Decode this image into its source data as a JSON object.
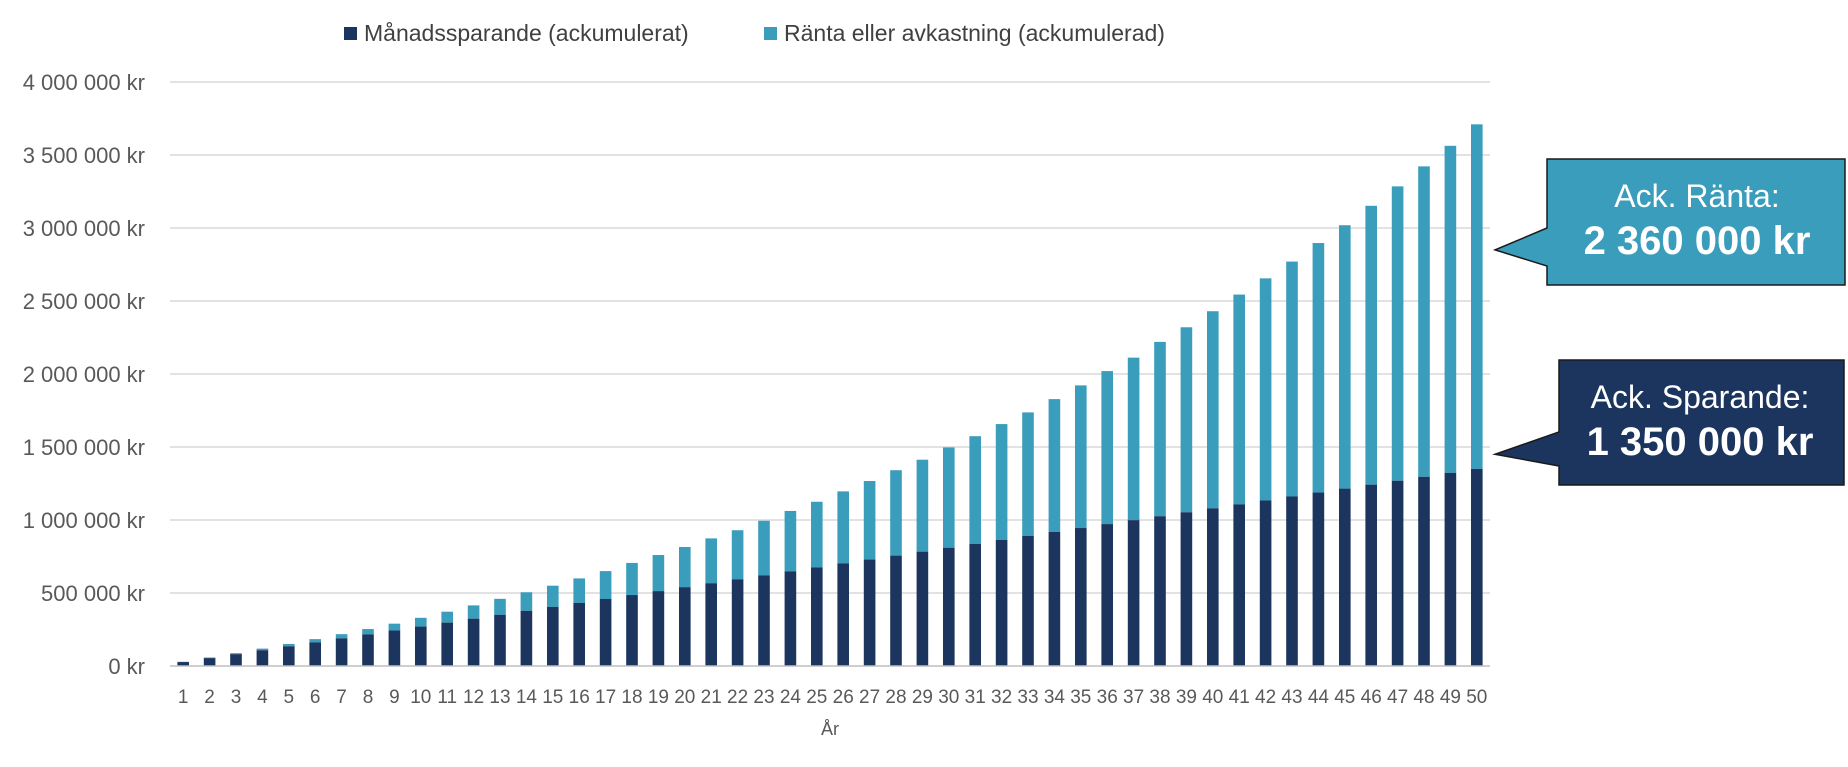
{
  "colors": {
    "series1": "#1c355e",
    "series2": "#3a9dbb",
    "grid": "#d9d9d9",
    "axis": "#bfbfbf",
    "callout_border": "#1a1a1a",
    "callout_text": "#ffffff"
  },
  "legend": {
    "series1_label": "Månadssparande (ackumulerat)",
    "series2_label": "Ränta eller avkastning (ackumulerad)"
  },
  "callouts": {
    "interest": {
      "line1": "Ack. Ränta:",
      "line2": "2 360 000 kr",
      "points_to_value": 2850000,
      "color": "#3a9dbb"
    },
    "savings": {
      "line1": "Ack. Sparande:",
      "line2": "1 350 000 kr",
      "points_to_value": 1450000,
      "color": "#1c355e"
    }
  },
  "chart_data": {
    "type": "bar",
    "stacked": true,
    "title": "",
    "xlabel": "År",
    "ylabel": "",
    "ylim": [
      0,
      4000000
    ],
    "y_ticks": [
      0,
      500000,
      1000000,
      1500000,
      2000000,
      2500000,
      3000000,
      3500000,
      4000000
    ],
    "y_tick_labels": [
      "0 kr",
      "500 000 kr",
      "1 000 000 kr",
      "1 500 000 kr",
      "2 000 000 kr",
      "2 500 000 kr",
      "3 000 000 kr",
      "3 500 000 kr",
      "4 000 000 kr"
    ],
    "grid": true,
    "legend_position": "top",
    "categories": [
      "1",
      "2",
      "3",
      "4",
      "5",
      "6",
      "7",
      "8",
      "9",
      "10",
      "11",
      "12",
      "13",
      "14",
      "15",
      "16",
      "17",
      "18",
      "19",
      "20",
      "21",
      "22",
      "23",
      "24",
      "25",
      "26",
      "27",
      "28",
      "29",
      "30",
      "31",
      "32",
      "33",
      "34",
      "35",
      "36",
      "37",
      "38",
      "39",
      "40",
      "41",
      "42",
      "43",
      "44",
      "45",
      "46",
      "47",
      "48",
      "49",
      "50"
    ],
    "series": [
      {
        "name": "Månadssparande (ackumulerat)",
        "values": [
          27000,
          54000,
          81000,
          108000,
          135000,
          162000,
          189000,
          216000,
          243000,
          270000,
          297000,
          324000,
          351000,
          378000,
          405000,
          432000,
          459000,
          486000,
          513000,
          540000,
          567000,
          594000,
          621000,
          648000,
          675000,
          702000,
          729000,
          756000,
          783000,
          810000,
          837000,
          864000,
          891000,
          918000,
          945000,
          972000,
          999000,
          1026000,
          1053000,
          1080000,
          1107000,
          1134000,
          1161000,
          1188000,
          1215000,
          1242000,
          1269000,
          1296000,
          1323000,
          1350000
        ]
      },
      {
        "name": "Ränta eller avkastning (ackumulerad)",
        "values": [
          2000,
          4000,
          7000,
          11000,
          16000,
          22000,
          29000,
          37000,
          47000,
          60000,
          75000,
          91000,
          109000,
          127000,
          145000,
          168000,
          191000,
          220000,
          247000,
          275000,
          307000,
          336000,
          374000,
          414000,
          450000,
          494000,
          538000,
          585000,
          630000,
          687000,
          737000,
          793000,
          846000,
          910000,
          977000,
          1048000,
          1113000,
          1194000,
          1267000,
          1350000,
          1437000,
          1521000,
          1609000,
          1709000,
          1804000,
          1910000,
          2016000,
          2126000,
          2240000,
          2360000
        ]
      }
    ]
  }
}
